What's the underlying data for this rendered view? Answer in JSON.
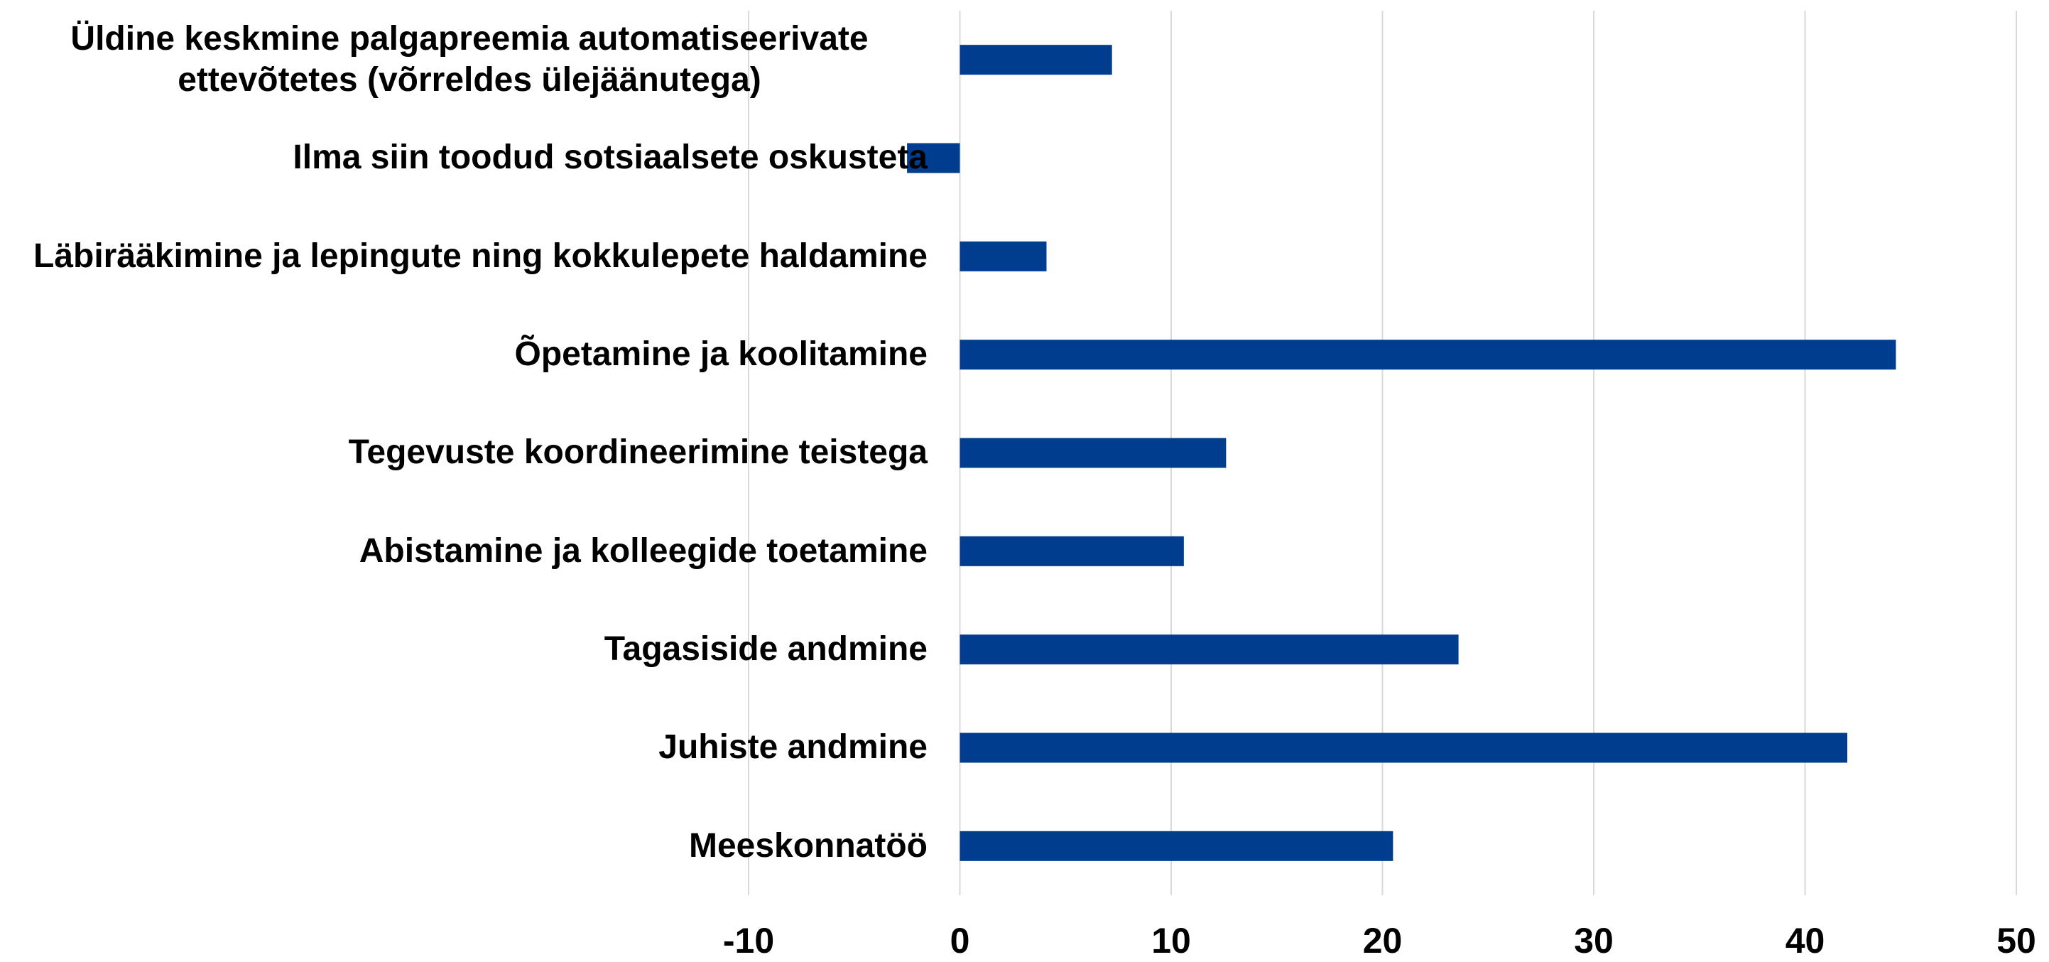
{
  "chart_data": {
    "type": "hbar",
    "categories": [
      "Üldine keskmine palgapreemia automatiseerivate ettevõtetes (võrreldes ülejäänutega)",
      "Ilma siin toodud sotsiaalsete oskusteta",
      "Läbirääkimine ja lepingute ning kokkulepete haldamine",
      "Õpetamine ja koolitamine",
      "Tegevuste koordineerimine teistega",
      "Abistamine ja kolleegide toetamine",
      "Tagasiside andmine",
      "Juhiste andmine",
      "Meeskonnatöö"
    ],
    "values": [
      7.2,
      -2.5,
      4.1,
      44.3,
      12.6,
      10.6,
      23.6,
      42.0,
      20.5
    ],
    "color": "#003d8f",
    "xlim": [
      -10,
      50
    ],
    "xticks": [
      -10,
      0,
      10,
      20,
      30,
      40,
      50
    ],
    "grid": true
  }
}
